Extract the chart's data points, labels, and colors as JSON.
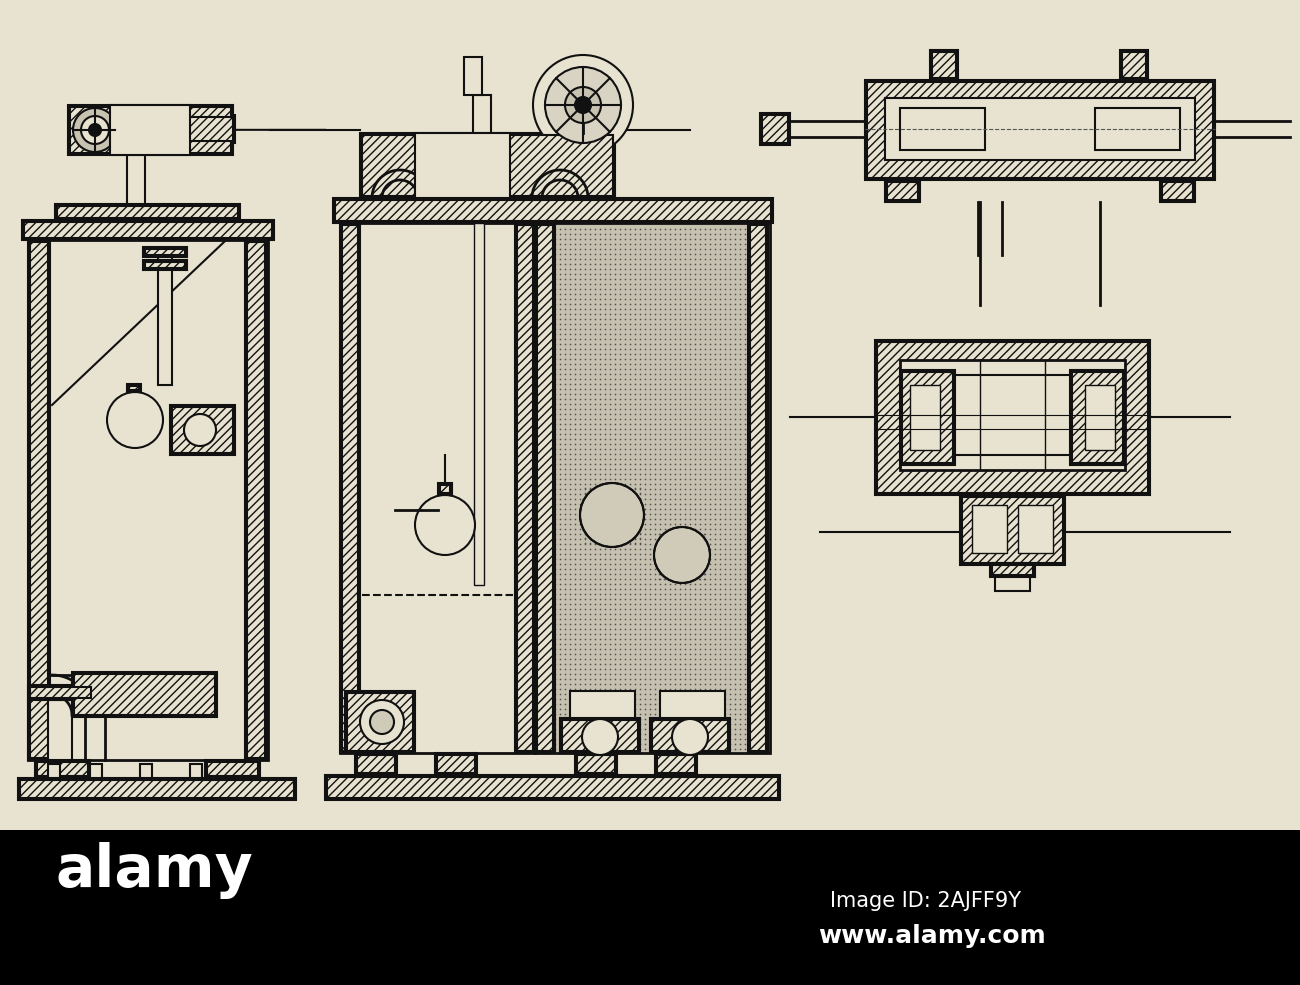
{
  "bg_color": "#e8e3d0",
  "black_bar_color": "#000000",
  "paper_bg": "#e8e3d0",
  "line_color": "#111111",
  "hatch_dark": "#111111",
  "fill_hatched": "#c8c3b0",
  "fill_light_inner": "#e8e3d0",
  "stipple_bg": "#ccc8b8",
  "watermark_text1": "Image ID: 2AJFF9Y",
  "watermark_text2": "www.alamy.com",
  "alamy_text": "alamy"
}
